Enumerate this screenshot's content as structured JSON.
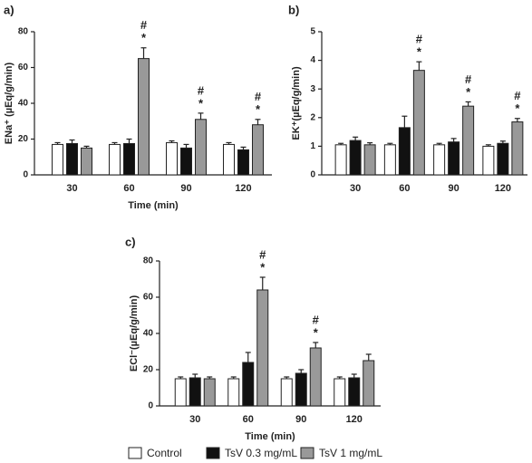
{
  "legend": [
    {
      "name": "Control",
      "color": "#ffffff"
    },
    {
      "name": "TsV 0.3 mg/mL",
      "color": "#111111"
    },
    {
      "name": "TsV 1 mg/mL",
      "color": "#999999"
    }
  ],
  "chart_data": [
    {
      "type": "bar",
      "panel": "a)",
      "ylabel": "ENa⁺ (µEq/g/min)",
      "xlabel": "Time (min)",
      "categories": [
        "30",
        "60",
        "90",
        "120"
      ],
      "ylim": [
        0,
        80
      ],
      "yticks": [
        0,
        20,
        40,
        60,
        80
      ],
      "series": [
        {
          "values": [
            17,
            17,
            18,
            17
          ],
          "errors": [
            1,
            1,
            1,
            1
          ]
        },
        {
          "values": [
            17.5,
            17.5,
            15,
            14
          ],
          "errors": [
            2,
            2.5,
            2,
            1.5
          ]
        },
        {
          "values": [
            15,
            65,
            31,
            28
          ],
          "errors": [
            1,
            6,
            3.5,
            3
          ],
          "annotations": [
            null,
            [
              "#",
              "*"
            ],
            [
              "#",
              "*"
            ],
            [
              "#",
              "*"
            ]
          ]
        }
      ]
    },
    {
      "type": "bar",
      "panel": "b)",
      "ylabel": "EK⁺(µEq/g/min)",
      "categories": [
        "30",
        "60",
        "90",
        "120"
      ],
      "ylim": [
        0,
        5
      ],
      "yticks": [
        0,
        1,
        2,
        3,
        4,
        5
      ],
      "series": [
        {
          "values": [
            1.05,
            1.05,
            1.05,
            1.0
          ],
          "errors": [
            0.05,
            0.05,
            0.05,
            0.05
          ]
        },
        {
          "values": [
            1.2,
            1.65,
            1.15,
            1.1
          ],
          "errors": [
            0.12,
            0.4,
            0.12,
            0.08
          ]
        },
        {
          "values": [
            1.05,
            3.65,
            2.4,
            1.85
          ],
          "errors": [
            0.07,
            0.3,
            0.15,
            0.12
          ],
          "annotations": [
            null,
            [
              "#",
              "*"
            ],
            [
              "#",
              "*"
            ],
            [
              "#",
              "*"
            ]
          ]
        }
      ]
    },
    {
      "type": "bar",
      "panel": "c)",
      "ylabel": "ECl⁻(µEq/g/min)",
      "xlabel": "Time (min)",
      "categories": [
        "30",
        "60",
        "90",
        "120"
      ],
      "ylim": [
        0,
        80
      ],
      "yticks": [
        0,
        20,
        40,
        60,
        80
      ],
      "series": [
        {
          "values": [
            15,
            15,
            15,
            15
          ],
          "errors": [
            1,
            1,
            1,
            1
          ]
        },
        {
          "values": [
            15.5,
            24,
            18,
            15.5
          ],
          "errors": [
            2,
            5.5,
            2,
            2
          ]
        },
        {
          "values": [
            15,
            64,
            32,
            25
          ],
          "errors": [
            1,
            7,
            3,
            3.5
          ],
          "annotations": [
            null,
            [
              "#",
              "*"
            ],
            [
              "#",
              "*"
            ],
            null
          ]
        }
      ]
    }
  ]
}
